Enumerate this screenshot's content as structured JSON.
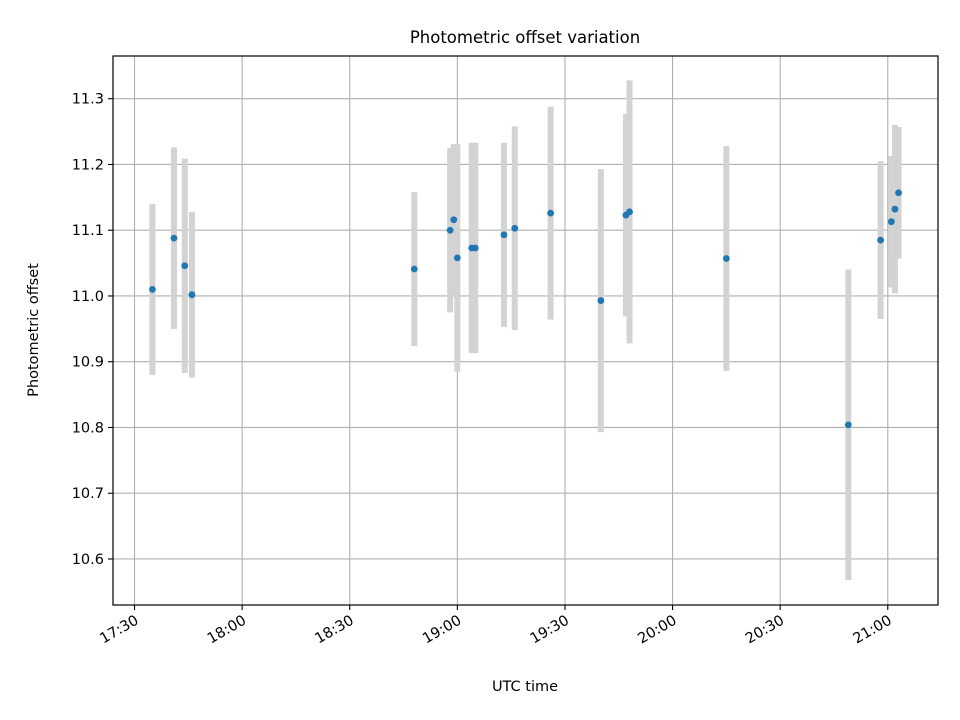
{
  "chart_data": {
    "type": "scatter",
    "title": "Photometric offset variation",
    "xlabel": "UTC time",
    "ylabel": "Photometric offset",
    "x_ticks": [
      "17:30",
      "18:00",
      "18:30",
      "19:00",
      "19:30",
      "20:00",
      "20:30",
      "21:00"
    ],
    "y_ticks": [
      "10.6",
      "10.7",
      "10.8",
      "10.9",
      "11.0",
      "11.1",
      "11.2",
      "11.3"
    ],
    "xlim": [
      "17:24",
      "21:14"
    ],
    "ylim": [
      10.53,
      11.365
    ],
    "grid": true,
    "error_bars": true,
    "points": [
      {
        "x": "17:35",
        "y": 11.01,
        "yerr": 0.13
      },
      {
        "x": "17:41",
        "y": 11.088,
        "yerr": 0.138
      },
      {
        "x": "17:44",
        "y": 11.046,
        "yerr": 0.163
      },
      {
        "x": "17:46",
        "y": 11.002,
        "yerr": 0.126
      },
      {
        "x": "18:48",
        "y": 11.041,
        "yerr": 0.117
      },
      {
        "x": "18:58",
        "y": 11.1,
        "yerr": 0.125
      },
      {
        "x": "18:59",
        "y": 11.116,
        "yerr": 0.115
      },
      {
        "x": "19:00",
        "y": 11.058,
        "yerr": 0.173
      },
      {
        "x": "19:04",
        "y": 11.073,
        "yerr": 0.16
      },
      {
        "x": "19:05",
        "y": 11.073,
        "yerr": 0.16
      },
      {
        "x": "19:13",
        "y": 11.093,
        "yerr": 0.14
      },
      {
        "x": "19:16",
        "y": 11.103,
        "yerr": 0.155
      },
      {
        "x": "19:26",
        "y": 11.126,
        "yerr": 0.162
      },
      {
        "x": "19:40",
        "y": 10.993,
        "yerr": 0.2
      },
      {
        "x": "19:47",
        "y": 11.123,
        "yerr": 0.154
      },
      {
        "x": "19:48",
        "y": 11.128,
        "yerr": 0.2
      },
      {
        "x": "20:15",
        "y": 11.057,
        "yerr": 0.171
      },
      {
        "x": "20:49",
        "y": 10.804,
        "yerr": 0.236
      },
      {
        "x": "20:58",
        "y": 11.085,
        "yerr": 0.12
      },
      {
        "x": "21:01",
        "y": 11.113,
        "yerr": 0.1
      },
      {
        "x": "21:02",
        "y": 11.132,
        "yerr": 0.128
      },
      {
        "x": "21:03",
        "y": 11.157,
        "yerr": 0.1
      }
    ],
    "colors": {
      "point": "#1f77b4",
      "error_bar": "#d3d3d3",
      "grid": "#b0b0b0",
      "axis": "#000000"
    }
  }
}
